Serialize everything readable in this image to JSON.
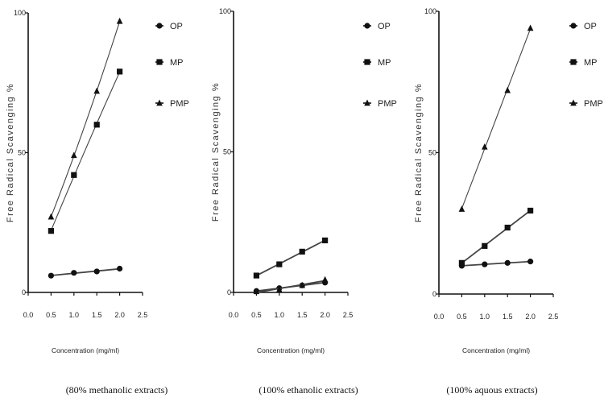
{
  "chart_data": [
    {
      "type": "scatter",
      "caption": "(80% methanolic extracts)",
      "ylabel": "Free Radical Scavenging %",
      "xlabel": "Concentration (mg/ml)",
      "xlim": [
        0.0,
        2.5
      ],
      "ylim": [
        0,
        100
      ],
      "xticks": [
        "0.0",
        "0.5",
        "1.0",
        "1.5",
        "2.0",
        "2.5"
      ],
      "yticks": [
        "0",
        "50",
        "100"
      ],
      "series": [
        {
          "name": "OP",
          "marker": "circle",
          "fit": "line",
          "x": [
            0.5,
            1.0,
            1.5,
            2.0
          ],
          "y": [
            6,
            7,
            7.5,
            8.5
          ]
        },
        {
          "name": "MP",
          "marker": "square",
          "fit": "curve",
          "x": [
            0.5,
            1.0,
            1.5,
            2.0
          ],
          "y": [
            22,
            42,
            60,
            79
          ]
        },
        {
          "name": "PMP",
          "marker": "triangle",
          "fit": "curve",
          "x": [
            0.5,
            1.0,
            1.5,
            2.0
          ],
          "y": [
            27,
            49,
            72,
            97
          ]
        }
      ]
    },
    {
      "type": "scatter",
      "caption": "(100% ethanolic extracts)",
      "ylabel": "Free Radical Scavenging %",
      "xlabel": "Concentration (mg/ml)",
      "xlim": [
        0.0,
        2.5
      ],
      "ylim": [
        0,
        100
      ],
      "xticks": [
        "0.0",
        "0.5",
        "1.0",
        "1.5",
        "2.0",
        "2.5"
      ],
      "yticks": [
        "0",
        "50",
        "100"
      ],
      "series": [
        {
          "name": "OP",
          "marker": "circle",
          "fit": "line",
          "x": [
            0.5,
            1.0,
            1.5,
            2.0
          ],
          "y": [
            0.5,
            1.5,
            2.5,
            3.5
          ]
        },
        {
          "name": "MP",
          "marker": "square",
          "fit": "line",
          "x": [
            0.5,
            1.0,
            1.5,
            2.0
          ],
          "y": [
            6,
            10,
            14.5,
            18.5
          ]
        },
        {
          "name": "PMP",
          "marker": "triangle",
          "fit": "line",
          "x": [
            0.5,
            1.0,
            1.5,
            2.0
          ],
          "y": [
            0.3,
            1.0,
            2.5,
            4.5
          ]
        }
      ]
    },
    {
      "type": "scatter",
      "caption": "(100% aquous extracts)",
      "ylabel": "Free Radical Scavenging %",
      "xlabel": "Concentration (mg/ml)",
      "xlim": [
        0.0,
        2.5
      ],
      "ylim": [
        0,
        100
      ],
      "xticks": [
        "0.0",
        "0.5",
        "1.0",
        "1.5",
        "2.0",
        "2.5"
      ],
      "yticks": [
        "0",
        "50",
        "100"
      ],
      "series": [
        {
          "name": "OP",
          "marker": "circle",
          "fit": "line",
          "x": [
            0.5,
            1.0,
            1.5,
            2.0
          ],
          "y": [
            10,
            10.5,
            11,
            11.5
          ]
        },
        {
          "name": "MP",
          "marker": "square",
          "fit": "line",
          "x": [
            0.5,
            1.0,
            1.5,
            2.0
          ],
          "y": [
            11,
            17,
            23.5,
            29.5
          ]
        },
        {
          "name": "PMP",
          "marker": "triangle",
          "fit": "curve",
          "x": [
            0.5,
            1.0,
            1.5,
            2.0
          ],
          "y": [
            30,
            52,
            72,
            94
          ]
        }
      ]
    }
  ]
}
